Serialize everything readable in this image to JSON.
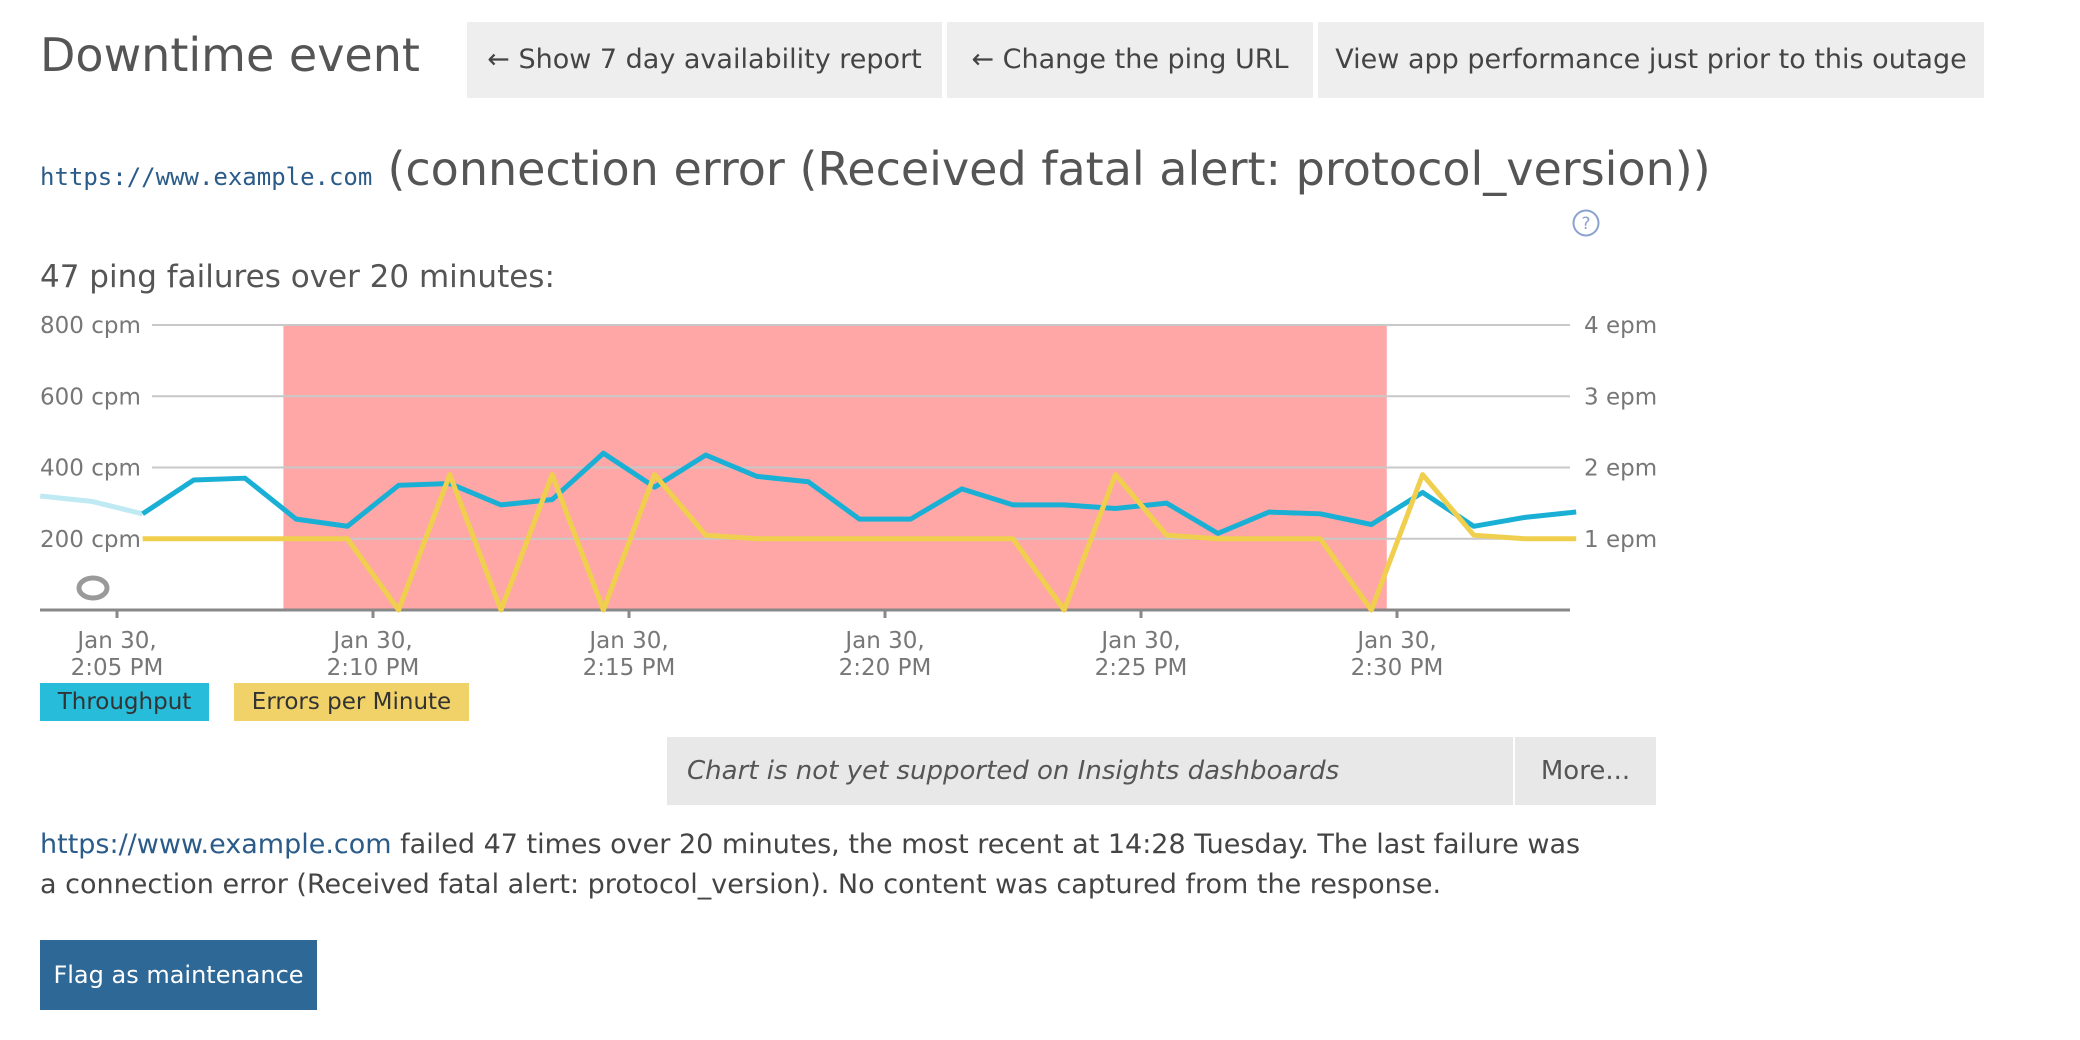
{
  "header": {
    "title": "Downtime event",
    "buttons": [
      {
        "label": "← Show 7 day availability report"
      },
      {
        "label": "← Change the ping URL"
      },
      {
        "label": "View app performance just prior to this outage"
      }
    ]
  },
  "incident": {
    "url": "https://www.example.com",
    "error_title": "(connection error (Received fatal alert: protocol_version))"
  },
  "chart_heading": "47 ping failures over 20 minutes:",
  "chart_data": {
    "type": "line",
    "title": "",
    "x_tick_labels": [
      [
        "Jan 30,",
        "2:05 PM"
      ],
      [
        "Jan 30,",
        "2:10 PM"
      ],
      [
        "Jan 30,",
        "2:15 PM"
      ],
      [
        "Jan 30,",
        "2:20 PM"
      ],
      [
        "Jan 30,",
        "2:25 PM"
      ],
      [
        "Jan 30,",
        "2:30 PM"
      ]
    ],
    "x_range_minutes": [
      -1.5,
      28.5
    ],
    "y_left": {
      "ticks": [
        "200 cpm",
        "400 cpm",
        "600 cpm",
        "800 cpm"
      ],
      "range": [
        0,
        800
      ],
      "unit": "cpm"
    },
    "y_right": {
      "ticks": [
        "1 epm",
        "2 epm",
        "3 epm",
        "4 epm"
      ],
      "range": [
        0,
        4
      ],
      "unit": "epm"
    },
    "downtime_window_minutes": [
      3.25,
      24.8
    ],
    "series": [
      {
        "name": "Throughput",
        "color": "#1ab0d5",
        "axis": "left",
        "x": [
          -1.5,
          -0.5,
          0.5,
          1.5,
          2.5,
          3.5,
          4.5,
          5.5,
          6.5,
          7.5,
          8.5,
          9.5,
          10.5,
          11.5,
          12.5,
          13.5,
          14.5,
          15.5,
          16.5,
          17.5,
          18.5,
          19.5,
          20.5,
          21.5,
          22.5,
          23.5,
          24.5,
          25.5,
          26.5,
          27.5,
          28.5
        ],
        "values": [
          320,
          305,
          270,
          365,
          370,
          255,
          235,
          350,
          355,
          295,
          310,
          440,
          345,
          435,
          375,
          360,
          255,
          255,
          340,
          295,
          295,
          285,
          300,
          215,
          275,
          270,
          240,
          330,
          235,
          260,
          275
        ]
      },
      {
        "name": "Errors per Minute",
        "color": "#f0cf4e",
        "axis": "right",
        "x": [
          0.5,
          3.5,
          4.5,
          5.5,
          6.5,
          7.5,
          8.5,
          9.5,
          10.5,
          11.5,
          12.5,
          13.5,
          14.5,
          15.5,
          16.5,
          17.5,
          18.5,
          19.5,
          20.5,
          21.5,
          22.5,
          23.5,
          24.5,
          25.5,
          26.5,
          27.5,
          28.5
        ],
        "values": [
          1,
          1,
          1,
          0,
          1.9,
          0,
          1.9,
          0,
          1.9,
          1.05,
          1,
          1,
          1,
          1,
          1,
          1,
          0,
          1.9,
          1.05,
          1,
          1,
          1,
          0,
          1.9,
          1.05,
          1,
          1
        ]
      }
    ],
    "legend": [
      "Throughput",
      "Errors per Minute"
    ],
    "legend_placement": "bottom-left",
    "grid": true,
    "downtime_color": "#ffa6a6"
  },
  "insights_note": "Chart is not yet supported on Insights dashboards",
  "more_label": "More...",
  "summary": {
    "link": "https://www.example.com",
    "text": " failed 47 times over 20 minutes, the most recent at 14:28 Tuesday. The last failure was a connection error (Received fatal alert: protocol_version). No content was captured from the response."
  },
  "flag_button": "Flag as maintenance"
}
